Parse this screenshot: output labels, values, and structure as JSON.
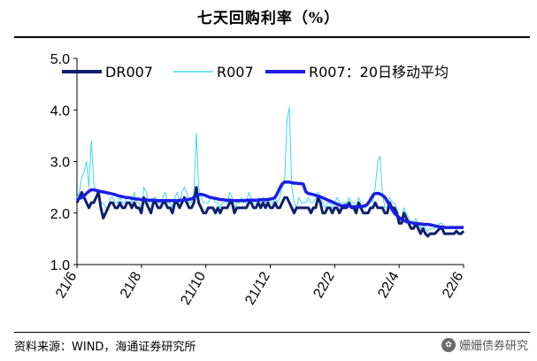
{
  "title": "七天回购利率（%）",
  "source": "资料来源：WIND，海通证券研究所",
  "watermark": "姗姗债券研究",
  "chart_data": {
    "type": "line",
    "ylim": [
      1.0,
      5.0
    ],
    "yticks": [
      "1.0",
      "2.0",
      "3.0",
      "4.0",
      "5.0"
    ],
    "xticks": [
      "21/6",
      "21/8",
      "21/10",
      "21/12",
      "22/2",
      "22/4",
      "22/6"
    ],
    "grid": false,
    "legend": "top-left",
    "series": [
      {
        "name": "DR007",
        "color": "#0d1f6e",
        "values": [
          2.2,
          2.3,
          2.4,
          2.3,
          2.2,
          2.1,
          2.2,
          2.2,
          2.3,
          2.4,
          2.1,
          1.9,
          2.0,
          2.1,
          2.2,
          2.2,
          2.1,
          2.1,
          2.2,
          2.1,
          2.1,
          2.2,
          2.2,
          2.1,
          2.2,
          2.1,
          2.1,
          2.0,
          2.3,
          2.2,
          2.1,
          2.0,
          2.2,
          2.2,
          2.1,
          2.1,
          2.2,
          2.2,
          2.1,
          2.1,
          2.0,
          2.2,
          2.2,
          2.1,
          2.2,
          2.3,
          2.2,
          2.1,
          2.1,
          2.2,
          2.5,
          2.2,
          2.1,
          2.0,
          2.0,
          2.1,
          2.1,
          2.1,
          2.0,
          2.1,
          2.0,
          2.1,
          2.1,
          2.1,
          2.2,
          2.2,
          2.0,
          2.1,
          2.1,
          2.1,
          2.1,
          2.1,
          2.2,
          2.2,
          2.1,
          2.1,
          2.2,
          2.1,
          2.2,
          2.1,
          2.2,
          2.1,
          2.1,
          2.2,
          2.1,
          2.1,
          2.2,
          2.3,
          2.3,
          2.2,
          2.1,
          2.0,
          2.1,
          2.1,
          2.1,
          2.1,
          2.1,
          2.1,
          2.0,
          2.1,
          2.1,
          2.3,
          2.2,
          2.0,
          2.0,
          2.1,
          2.1,
          2.0,
          2.1,
          2.1,
          2.0,
          2.1,
          2.1,
          2.1,
          2.2,
          2.1,
          2.1,
          2.0,
          2.2,
          2.1,
          2.0,
          2.0,
          2.0,
          2.1,
          2.1,
          2.2,
          2.1,
          2.1,
          2.1,
          2.0,
          2.0,
          2.2,
          2.1,
          2.1,
          2.0,
          1.8,
          1.8,
          2.0,
          1.9,
          1.8,
          1.7,
          1.7,
          1.8,
          1.7,
          1.6,
          1.7,
          1.6,
          1.55,
          1.6,
          1.6,
          1.6,
          1.65,
          1.7,
          1.7,
          1.6,
          1.6,
          1.6,
          1.6,
          1.6,
          1.65,
          1.6,
          1.6,
          1.65
        ]
      },
      {
        "name": "R007",
        "color": "#3fd9e8",
        "values": [
          2.3,
          2.4,
          2.7,
          2.8,
          3.0,
          2.5,
          3.4,
          2.6,
          2.4,
          2.4,
          2.2,
          2.2,
          2.1,
          2.1,
          2.3,
          2.3,
          2.2,
          2.2,
          2.3,
          2.2,
          2.2,
          2.3,
          2.3,
          2.2,
          2.4,
          2.2,
          2.2,
          2.1,
          2.5,
          2.4,
          2.2,
          2.2,
          2.3,
          2.3,
          2.2,
          2.2,
          2.3,
          2.4,
          2.2,
          2.2,
          2.1,
          2.3,
          2.4,
          2.2,
          2.4,
          2.5,
          2.4,
          2.2,
          2.2,
          2.4,
          3.55,
          2.5,
          2.3,
          2.2,
          2.2,
          2.2,
          2.3,
          2.3,
          2.2,
          2.2,
          2.1,
          2.2,
          2.2,
          2.2,
          2.4,
          2.3,
          2.1,
          2.2,
          2.2,
          2.3,
          2.2,
          2.2,
          2.4,
          2.3,
          2.2,
          2.2,
          2.3,
          2.2,
          2.3,
          2.2,
          2.3,
          2.2,
          2.2,
          2.3,
          2.2,
          2.3,
          2.5,
          2.6,
          3.8,
          4.05,
          2.5,
          2.2,
          2.1,
          2.3,
          2.2,
          2.2,
          2.2,
          2.3,
          2.2,
          2.2,
          2.3,
          2.4,
          2.3,
          2.2,
          2.1,
          2.2,
          2.2,
          2.1,
          2.2,
          2.3,
          2.2,
          2.2,
          2.2,
          2.2,
          2.3,
          2.2,
          2.2,
          2.1,
          2.3,
          2.2,
          2.1,
          2.1,
          2.2,
          2.3,
          2.2,
          2.5,
          3.0,
          3.1,
          2.4,
          2.1,
          2.1,
          2.3,
          2.2,
          2.2,
          2.1,
          1.9,
          1.9,
          2.1,
          2.0,
          1.9,
          1.8,
          1.8,
          1.9,
          1.8,
          1.7,
          1.8,
          1.7,
          1.65,
          1.7,
          1.7,
          1.7,
          1.75,
          1.8,
          1.8,
          1.7,
          1.7,
          1.7,
          1.7,
          1.7,
          1.75,
          1.7,
          1.7,
          1.75
        ]
      },
      {
        "name": "R007：20日移动平均",
        "color": "#1c1ee6",
        "values": [
          2.25,
          2.28,
          2.3,
          2.33,
          2.38,
          2.42,
          2.45,
          2.45,
          2.44,
          2.43,
          2.42,
          2.41,
          2.4,
          2.39,
          2.38,
          2.37,
          2.36,
          2.34,
          2.33,
          2.32,
          2.31,
          2.3,
          2.3,
          2.29,
          2.28,
          2.27,
          2.27,
          2.26,
          2.26,
          2.26,
          2.25,
          2.25,
          2.25,
          2.25,
          2.24,
          2.24,
          2.24,
          2.24,
          2.24,
          2.24,
          2.24,
          2.24,
          2.24,
          2.24,
          2.25,
          2.25,
          2.26,
          2.26,
          2.27,
          2.28,
          2.32,
          2.34,
          2.36,
          2.36,
          2.35,
          2.33,
          2.31,
          2.3,
          2.29,
          2.28,
          2.27,
          2.26,
          2.26,
          2.25,
          2.25,
          2.25,
          2.24,
          2.24,
          2.24,
          2.24,
          2.24,
          2.24,
          2.25,
          2.25,
          2.25,
          2.25,
          2.25,
          2.25,
          2.26,
          2.26,
          2.26,
          2.26,
          2.27,
          2.28,
          2.3,
          2.38,
          2.48,
          2.56,
          2.6,
          2.6,
          2.6,
          2.59,
          2.58,
          2.58,
          2.57,
          2.57,
          2.56,
          2.42,
          2.38,
          2.37,
          2.36,
          2.35,
          2.33,
          2.32,
          2.3,
          2.28,
          2.26,
          2.24,
          2.22,
          2.2,
          2.18,
          2.16,
          2.14,
          2.14,
          2.15,
          2.14,
          2.13,
          2.12,
          2.12,
          2.12,
          2.12,
          2.13,
          2.14,
          2.16,
          2.22,
          2.3,
          2.37,
          2.38,
          2.38,
          2.36,
          2.33,
          2.28,
          2.2,
          2.12,
          2.04,
          1.98,
          1.94,
          1.9,
          1.87,
          1.85,
          1.83,
          1.82,
          1.81,
          1.8,
          1.8,
          1.79,
          1.79,
          1.78,
          1.78,
          1.78,
          1.77,
          1.76,
          1.75,
          1.74,
          1.73,
          1.73,
          1.72,
          1.72,
          1.72,
          1.72,
          1.72,
          1.72,
          1.72,
          1.72,
          1.72
        ]
      }
    ]
  }
}
